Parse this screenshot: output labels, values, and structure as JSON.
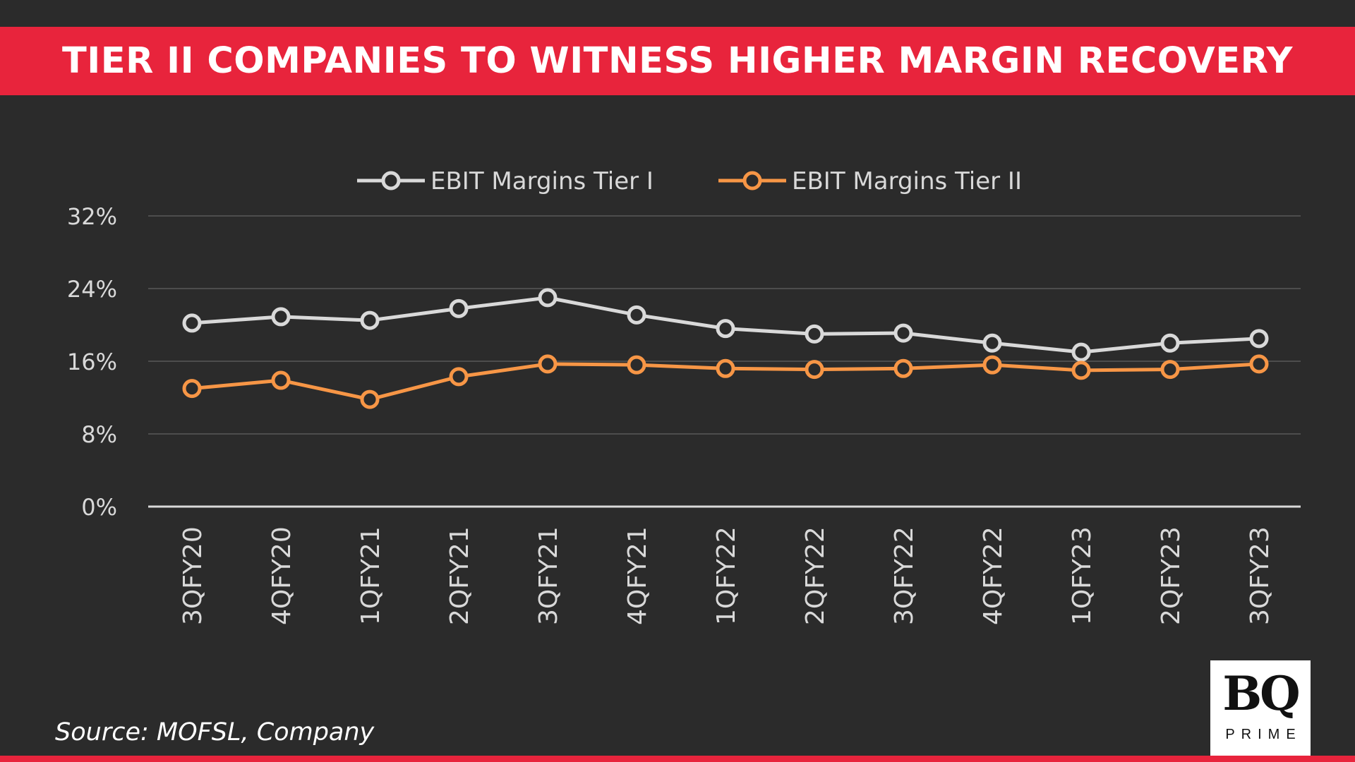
{
  "header": {
    "title": "TIER II COMPANIES TO WITNESS HIGHER MARGIN RECOVERY"
  },
  "footer": {
    "source": "Source: MOFSL, Company"
  },
  "logo": {
    "mark": "BQ",
    "sub": "PRIME"
  },
  "colors": {
    "background": "#2b2b2b",
    "accent": "#e8243c",
    "series_tier1": "#d9d9d9",
    "series_tier2": "#f79646",
    "axis_text": "#d9d9d9",
    "gridline": "#595959"
  },
  "chart_data": {
    "type": "line",
    "title": "",
    "xlabel": "",
    "ylabel": "",
    "ylim": [
      0,
      32
    ],
    "yticks": [
      "0%",
      "8%",
      "16%",
      "24%",
      "32%"
    ],
    "ytick_values": [
      0,
      8,
      16,
      24,
      32
    ],
    "grid": true,
    "legend_position": "top-center",
    "categories": [
      "3QFY20",
      "4QFY20",
      "1QFY21",
      "2QFY21",
      "3QFY21",
      "4QFY21",
      "1QFY22",
      "2QFY22",
      "3QFY22",
      "4QFY22",
      "1QFY23",
      "2QFY23",
      "3QFY23"
    ],
    "series": [
      {
        "name": "EBIT Margins Tier I",
        "color": "#d9d9d9",
        "values": [
          20.2,
          20.9,
          20.5,
          21.8,
          23.0,
          21.1,
          19.6,
          19.0,
          19.1,
          18.0,
          17.0,
          18.0,
          18.5
        ]
      },
      {
        "name": "EBIT Margins Tier II",
        "color": "#f79646",
        "values": [
          13.0,
          13.9,
          11.8,
          14.3,
          15.7,
          15.6,
          15.2,
          15.1,
          15.2,
          15.6,
          15.0,
          15.1,
          15.7
        ]
      }
    ]
  }
}
